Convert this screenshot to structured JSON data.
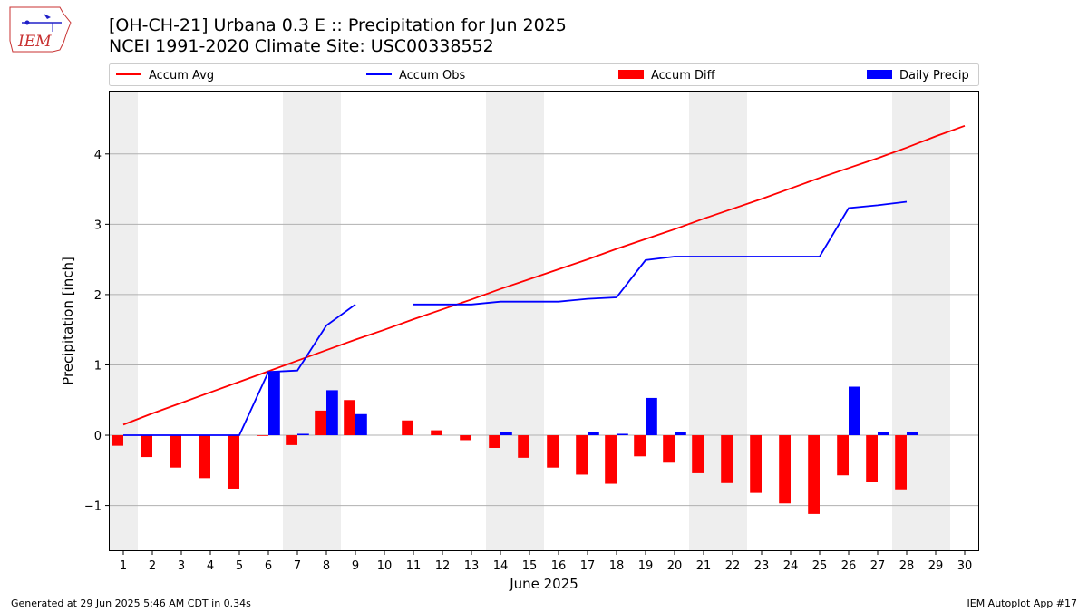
{
  "header": {
    "title_line1": "[OH-CH-21] Urbana 0.3 E :: Precipitation for Jun 2025",
    "title_line2": "NCEI 1991-2020 Climate Site: USC00338552"
  },
  "logo": {
    "text": "IEM"
  },
  "footer": {
    "left": "Generated at 29 Jun 2025 5:46 AM CDT in 0.34s",
    "right": "IEM Autoplot App #17"
  },
  "colors": {
    "avg": "#ff0000",
    "obs": "#0000ff",
    "diff": "#ff0000",
    "daily": "#0000ff",
    "weekend": "#eeeeee",
    "grid": "#b0b0b0"
  },
  "chart_data": {
    "type": "bar",
    "xlabel": "June 2025",
    "ylabel": "Precipitation [inch]",
    "x": [
      1,
      2,
      3,
      4,
      5,
      6,
      7,
      8,
      9,
      10,
      11,
      12,
      13,
      14,
      15,
      16,
      17,
      18,
      19,
      20,
      21,
      22,
      23,
      24,
      25,
      26,
      27,
      28,
      29,
      30
    ],
    "xlim": [
      0.5,
      30.5
    ],
    "ylim": [
      -1.65,
      4.9
    ],
    "yticks": [
      -1,
      0,
      1,
      2,
      3,
      4
    ],
    "grid": "horizontal",
    "shaded_weekend_days": [
      1,
      7,
      8,
      14,
      15,
      21,
      22,
      28,
      29
    ],
    "legend": {
      "placement": "top",
      "entries": [
        {
          "label": "Accum Avg",
          "kind": "line",
          "color": "#ff0000"
        },
        {
          "label": "Accum Obs",
          "kind": "line",
          "color": "#0000ff"
        },
        {
          "label": "Accum Diff",
          "kind": "bar",
          "color": "#ff0000"
        },
        {
          "label": "Daily Precip",
          "kind": "bar",
          "color": "#0000ff"
        }
      ]
    },
    "series": [
      {
        "name": "Accum Avg",
        "type": "line",
        "values": [
          0.15,
          0.31,
          0.46,
          0.61,
          0.76,
          0.91,
          1.06,
          1.21,
          1.36,
          1.5,
          1.65,
          1.79,
          1.93,
          2.08,
          2.22,
          2.36,
          2.5,
          2.65,
          2.79,
          2.93,
          3.08,
          3.22,
          3.36,
          3.51,
          3.66,
          3.8,
          3.94,
          4.09,
          4.25,
          4.4
        ]
      },
      {
        "name": "Accum Obs",
        "type": "line",
        "values": [
          0,
          0,
          0,
          0,
          0,
          0.9,
          0.92,
          1.56,
          1.86,
          null,
          1.86,
          1.86,
          1.86,
          1.9,
          1.9,
          1.9,
          1.94,
          1.96,
          2.49,
          2.54,
          2.54,
          2.54,
          2.54,
          2.54,
          2.54,
          3.23,
          3.27,
          3.32,
          null,
          null
        ]
      },
      {
        "name": "Accum Diff",
        "type": "bar",
        "values": [
          -0.15,
          -0.31,
          -0.46,
          -0.61,
          -0.76,
          -0.01,
          -0.14,
          0.35,
          0.5,
          null,
          0.21,
          0.07,
          -0.07,
          -0.18,
          -0.32,
          -0.46,
          -0.56,
          -0.69,
          -0.3,
          -0.39,
          -0.54,
          -0.68,
          -0.82,
          -0.97,
          -1.12,
          -0.57,
          -0.67,
          -0.77,
          null,
          null
        ]
      },
      {
        "name": "Daily Precip",
        "type": "bar",
        "values": [
          0,
          0,
          0,
          0,
          0,
          0.9,
          0.02,
          0.64,
          0.3,
          null,
          0,
          0,
          0,
          0.04,
          0,
          0,
          0.04,
          0.02,
          0.53,
          0.05,
          0,
          0,
          0,
          0,
          0,
          0.69,
          0.04,
          0.05,
          null,
          null
        ]
      }
    ]
  }
}
